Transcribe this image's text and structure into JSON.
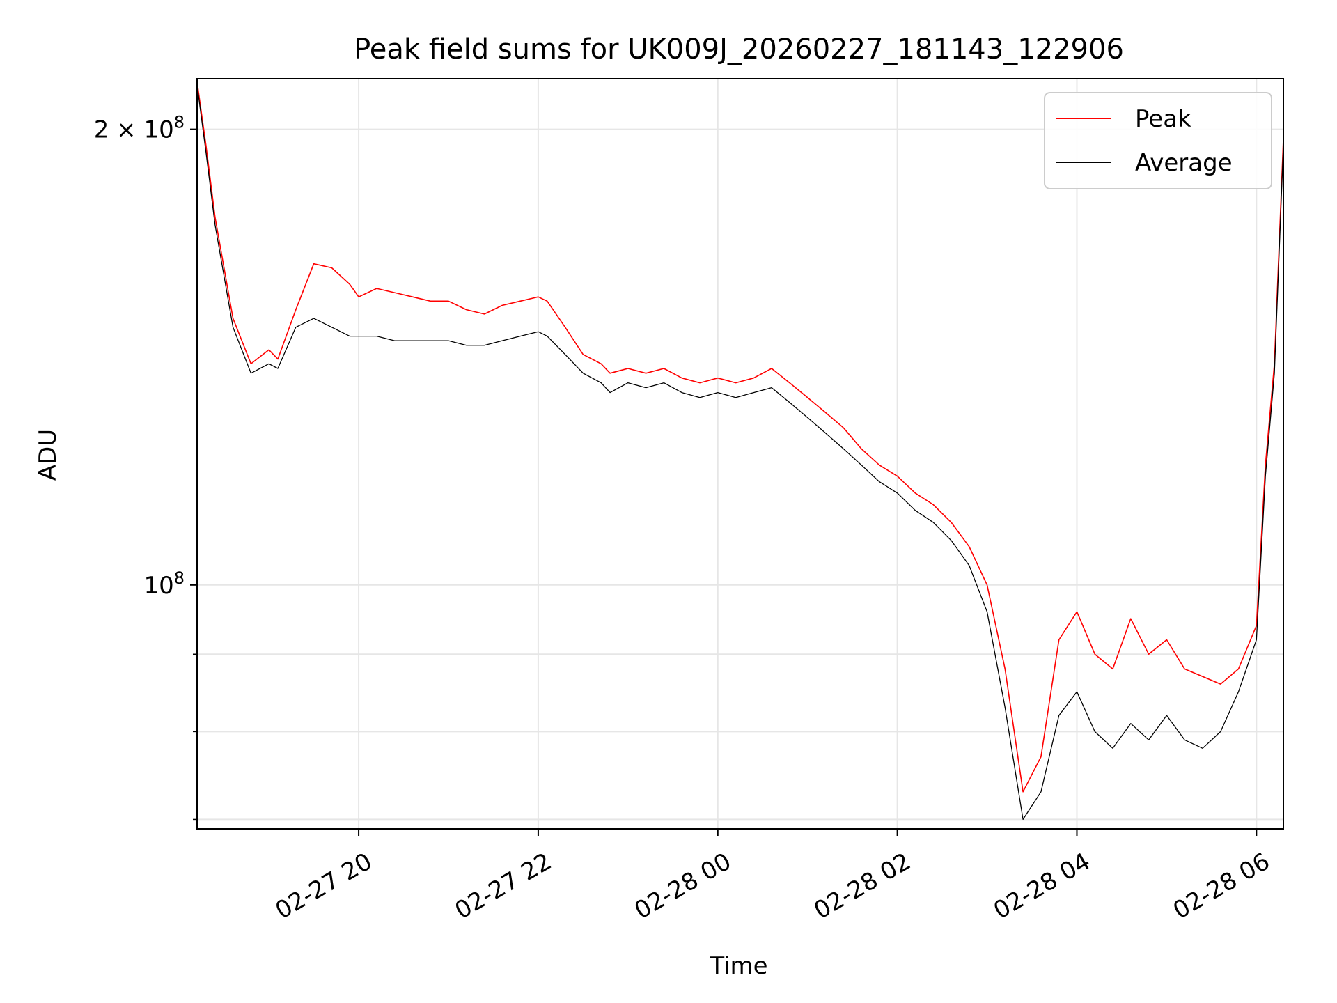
{
  "chart_data": {
    "type": "line",
    "title": "Peak field sums for UK009J_20260227_181143_122906",
    "xlabel": "Time",
    "ylabel": "ADU",
    "yscale": "log",
    "grid": true,
    "legend_position": "top-right",
    "xlim_hours": [
      18.2,
      30.3
    ],
    "ylim": [
      69000000,
      216000000
    ],
    "x_ticks": [
      {
        "hour": 20,
        "label": "02-27 20"
      },
      {
        "hour": 22,
        "label": "02-27 22"
      },
      {
        "hour": 24,
        "label": "02-28 00"
      },
      {
        "hour": 26,
        "label": "02-28 02"
      },
      {
        "hour": 28,
        "label": "02-28 04"
      },
      {
        "hour": 30,
        "label": "02-28 06"
      }
    ],
    "y_ticks": [
      {
        "value": 100000000,
        "label_base": "10",
        "label_exp": "8"
      },
      {
        "value": 200000000,
        "label_base": "2 × 10",
        "label_exp": "8"
      }
    ],
    "y_minor_ticks": [
      70000000,
      80000000,
      90000000
    ],
    "x_unit_note": "x values are hours since 2026-02-27 00:00",
    "series": [
      {
        "name": "Peak",
        "color": "#ff0000",
        "x": [
          18.2,
          18.3,
          18.4,
          18.6,
          18.8,
          19.0,
          19.1,
          19.3,
          19.5,
          19.7,
          19.9,
          20.0,
          20.2,
          20.4,
          20.6,
          20.8,
          21.0,
          21.2,
          21.4,
          21.6,
          21.8,
          22.0,
          22.1,
          22.3,
          22.5,
          22.7,
          22.8,
          23.0,
          23.2,
          23.4,
          23.6,
          23.8,
          24.0,
          24.2,
          24.4,
          24.6,
          24.8,
          25.0,
          25.2,
          25.4,
          25.6,
          25.8,
          26.0,
          26.2,
          26.4,
          26.6,
          26.8,
          27.0,
          27.2,
          27.4,
          27.6,
          27.8,
          28.0,
          28.2,
          28.4,
          28.6,
          28.8,
          29.0,
          29.2,
          29.4,
          29.6,
          29.8,
          30.0,
          30.1,
          30.2,
          30.3
        ],
        "values": [
          215000000,
          195000000,
          175000000,
          150000000,
          140000000,
          143000000,
          141000000,
          152000000,
          163000000,
          162000000,
          158000000,
          155000000,
          157000000,
          156000000,
          155000000,
          154000000,
          154000000,
          152000000,
          151000000,
          153000000,
          154000000,
          155000000,
          154000000,
          148000000,
          142000000,
          140000000,
          138000000,
          139000000,
          138000000,
          139000000,
          137000000,
          136000000,
          137000000,
          136000000,
          137000000,
          139000000,
          136000000,
          133000000,
          130000000,
          127000000,
          123000000,
          120000000,
          118000000,
          115000000,
          113000000,
          110000000,
          106000000,
          100000000,
          88000000,
          73000000,
          77000000,
          92000000,
          96000000,
          90000000,
          88000000,
          95000000,
          90000000,
          92000000,
          88000000,
          87000000,
          86000000,
          88000000,
          94000000,
          120000000,
          140000000,
          197000000
        ]
      },
      {
        "name": "Average",
        "color": "#000000",
        "x": [
          18.2,
          18.3,
          18.4,
          18.6,
          18.8,
          19.0,
          19.1,
          19.3,
          19.5,
          19.7,
          19.9,
          20.0,
          20.2,
          20.4,
          20.6,
          20.8,
          21.0,
          21.2,
          21.4,
          21.6,
          21.8,
          22.0,
          22.1,
          22.3,
          22.5,
          22.7,
          22.8,
          23.0,
          23.2,
          23.4,
          23.6,
          23.8,
          24.0,
          24.2,
          24.4,
          24.6,
          24.8,
          25.0,
          25.2,
          25.4,
          25.6,
          25.8,
          26.0,
          26.2,
          26.4,
          26.6,
          26.8,
          27.0,
          27.2,
          27.4,
          27.6,
          27.8,
          28.0,
          28.2,
          28.4,
          28.6,
          28.8,
          29.0,
          29.2,
          29.4,
          29.6,
          29.8,
          30.0,
          30.1,
          30.2,
          30.3
        ],
        "values": [
          214000000,
          193000000,
          173000000,
          148000000,
          138000000,
          140000000,
          139000000,
          148000000,
          150000000,
          148000000,
          146000000,
          146000000,
          146000000,
          145000000,
          145000000,
          145000000,
          145000000,
          144000000,
          144000000,
          145000000,
          146000000,
          147000000,
          146000000,
          142000000,
          138000000,
          136000000,
          134000000,
          136000000,
          135000000,
          136000000,
          134000000,
          133000000,
          134000000,
          133000000,
          134000000,
          135000000,
          132000000,
          129000000,
          126000000,
          123000000,
          120000000,
          117000000,
          115000000,
          112000000,
          110000000,
          107000000,
          103000000,
          96000000,
          83000000,
          70000000,
          73000000,
          82000000,
          85000000,
          80000000,
          78000000,
          81000000,
          79000000,
          82000000,
          79000000,
          78000000,
          80000000,
          85000000,
          92000000,
          118000000,
          138000000,
          195000000
        ]
      }
    ],
    "legend_entries": [
      "Peak",
      "Average"
    ]
  }
}
